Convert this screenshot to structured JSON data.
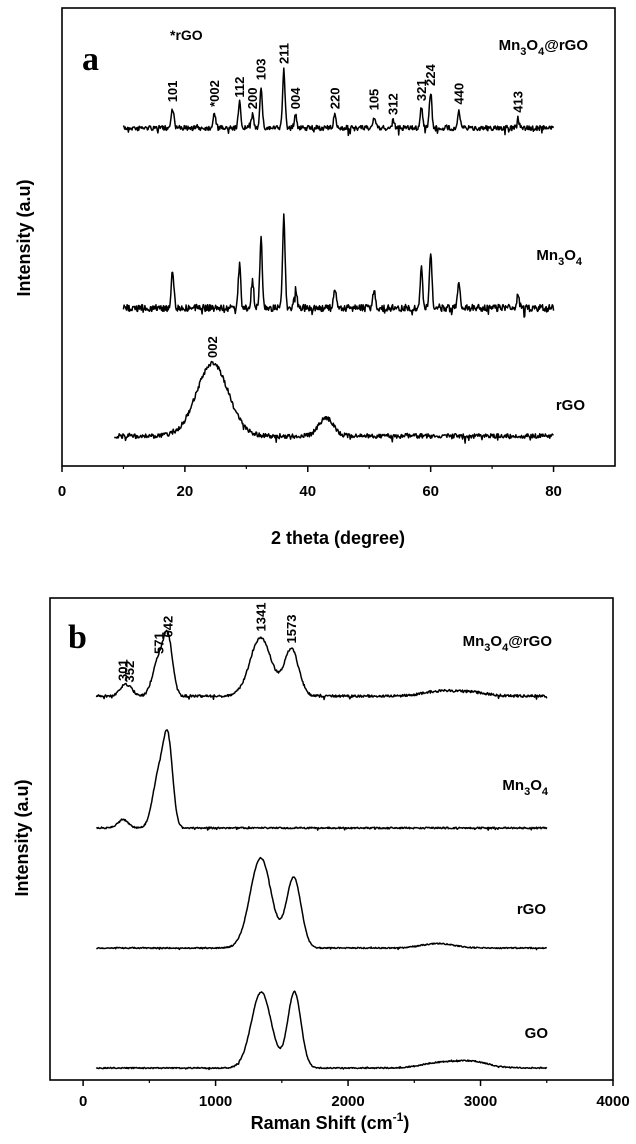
{
  "chart_data": [
    {
      "panel": "a",
      "type": "line",
      "xlabel": "2 theta (degree)",
      "ylabel": "Intensity (a.u)",
      "xlim": [
        0,
        90
      ],
      "xticks": [
        0,
        20,
        40,
        60,
        80
      ],
      "legend_note": "*rGO",
      "series": [
        {
          "name": "Mn3O4@rGO",
          "label_main": "Mn",
          "label_sub": "3",
          "label_mid": "O",
          "label_sub2": "4",
          "label_tail": "@rGO",
          "x_range": [
            10,
            80
          ],
          "peaks": [
            {
              "x": 18.0,
              "h": 0.34,
              "w": 0.22,
              "label": "101"
            },
            {
              "x": 24.8,
              "h": 0.26,
              "w": 0.22,
              "label": "*002"
            },
            {
              "x": 28.9,
              "h": 0.42,
              "w": 0.2,
              "label": "112"
            },
            {
              "x": 31.0,
              "h": 0.22,
              "w": 0.2,
              "label": "200"
            },
            {
              "x": 32.4,
              "h": 0.72,
              "w": 0.2,
              "label": "103"
            },
            {
              "x": 36.1,
              "h": 1.0,
              "w": 0.2,
              "label": "211"
            },
            {
              "x": 38.0,
              "h": 0.22,
              "w": 0.2,
              "label": "004"
            },
            {
              "x": 44.4,
              "h": 0.22,
              "w": 0.2,
              "label": "220"
            },
            {
              "x": 50.8,
              "h": 0.2,
              "w": 0.2,
              "label": "105"
            },
            {
              "x": 53.9,
              "h": 0.12,
              "w": 0.2,
              "label": "312"
            },
            {
              "x": 58.5,
              "h": 0.36,
              "w": 0.2,
              "label": "321"
            },
            {
              "x": 60.0,
              "h": 0.62,
              "w": 0.2,
              "label": "224"
            },
            {
              "x": 64.6,
              "h": 0.3,
              "w": 0.2,
              "label": "440"
            },
            {
              "x": 74.2,
              "h": 0.16,
              "w": 0.2,
              "label": "413"
            }
          ]
        },
        {
          "name": "Mn3O4",
          "label_main": "Mn",
          "label_sub": "3",
          "label_mid": "O",
          "label_sub2": "4",
          "label_tail": "",
          "x_range": [
            10,
            80
          ],
          "peaks": [
            {
              "x": 18.0,
              "h": 0.4,
              "w": 0.22
            },
            {
              "x": 28.9,
              "h": 0.48,
              "w": 0.2
            },
            {
              "x": 31.0,
              "h": 0.3,
              "w": 0.2
            },
            {
              "x": 32.4,
              "h": 0.75,
              "w": 0.2
            },
            {
              "x": 36.1,
              "h": 1.0,
              "w": 0.2
            },
            {
              "x": 38.0,
              "h": 0.2,
              "w": 0.2
            },
            {
              "x": 44.4,
              "h": 0.22,
              "w": 0.2
            },
            {
              "x": 50.8,
              "h": 0.2,
              "w": 0.2
            },
            {
              "x": 58.5,
              "h": 0.42,
              "w": 0.2
            },
            {
              "x": 60.0,
              "h": 0.6,
              "w": 0.2
            },
            {
              "x": 64.6,
              "h": 0.3,
              "w": 0.2
            },
            {
              "x": 74.2,
              "h": 0.14,
              "w": 0.2
            }
          ]
        },
        {
          "name": "rGO",
          "label_main": "rGO",
          "label_sub": "",
          "label_mid": "",
          "label_sub2": "",
          "label_tail": "",
          "x_range": [
            8.5,
            80
          ],
          "peaks": [
            {
              "x": 24.5,
              "h": 1.0,
              "w": 2.6,
              "label": "002"
            },
            {
              "x": 43.0,
              "h": 0.25,
              "w": 1.2
            }
          ]
        }
      ]
    },
    {
      "panel": "b",
      "type": "line",
      "xlabel": "Raman Shift (cm",
      "xlabel_sup": "-1",
      "xlabel_end": ")",
      "ylabel": "Intensity (a.u)",
      "xlim": [
        -250,
        4000
      ],
      "xticks": [
        0,
        1000,
        2000,
        3000,
        4000
      ],
      "series": [
        {
          "name": "Mn3O4@rGO",
          "label_main": "Mn",
          "label_sub": "3",
          "label_mid": "O",
          "label_sub2": "4",
          "label_tail": "@rGO",
          "x_range": [
            100,
            3500
          ],
          "peaks": [
            {
              "x": 301,
              "h": 0.12,
              "w": 30,
              "label": "301"
            },
            {
              "x": 352,
              "h": 0.1,
              "w": 30,
              "label": "352"
            },
            {
              "x": 571,
              "h": 0.48,
              "w": 45,
              "label": "571"
            },
            {
              "x": 642,
              "h": 0.7,
              "w": 35,
              "label": "642"
            },
            {
              "x": 1341,
              "h": 0.78,
              "w": 80,
              "label": "1341"
            },
            {
              "x": 1573,
              "h": 0.62,
              "w": 55,
              "label": "1573"
            },
            {
              "x": 2680,
              "h": 0.06,
              "w": 120
            },
            {
              "x": 2920,
              "h": 0.05,
              "w": 120
            }
          ]
        },
        {
          "name": "Mn3O4",
          "label_main": "Mn",
          "label_sub": "3",
          "label_mid": "O",
          "label_sub2": "4",
          "label_tail": "",
          "x_range": [
            100,
            3500
          ],
          "peaks": [
            {
              "x": 300,
              "h": 0.1,
              "w": 40
            },
            {
              "x": 571,
              "h": 0.62,
              "w": 45
            },
            {
              "x": 642,
              "h": 0.95,
              "w": 35
            }
          ]
        },
        {
          "name": "rGO",
          "label_main": "rGO",
          "label_sub": "",
          "label_mid": "",
          "label_sub2": "",
          "label_tail": "",
          "x_range": [
            100,
            3500
          ],
          "peaks": [
            {
              "x": 1341,
              "h": 1.0,
              "w": 80
            },
            {
              "x": 1590,
              "h": 0.78,
              "w": 55
            },
            {
              "x": 2680,
              "h": 0.05,
              "w": 120
            }
          ]
        },
        {
          "name": "GO",
          "label_main": "GO",
          "label_sub": "",
          "label_mid": "",
          "label_sub2": "",
          "label_tail": "",
          "x_range": [
            100,
            3500
          ],
          "peaks": [
            {
              "x": 1345,
              "h": 0.95,
              "w": 75
            },
            {
              "x": 1595,
              "h": 0.95,
              "w": 50
            },
            {
              "x": 2680,
              "h": 0.06,
              "w": 130
            },
            {
              "x": 2930,
              "h": 0.08,
              "w": 130
            }
          ]
        }
      ]
    }
  ]
}
